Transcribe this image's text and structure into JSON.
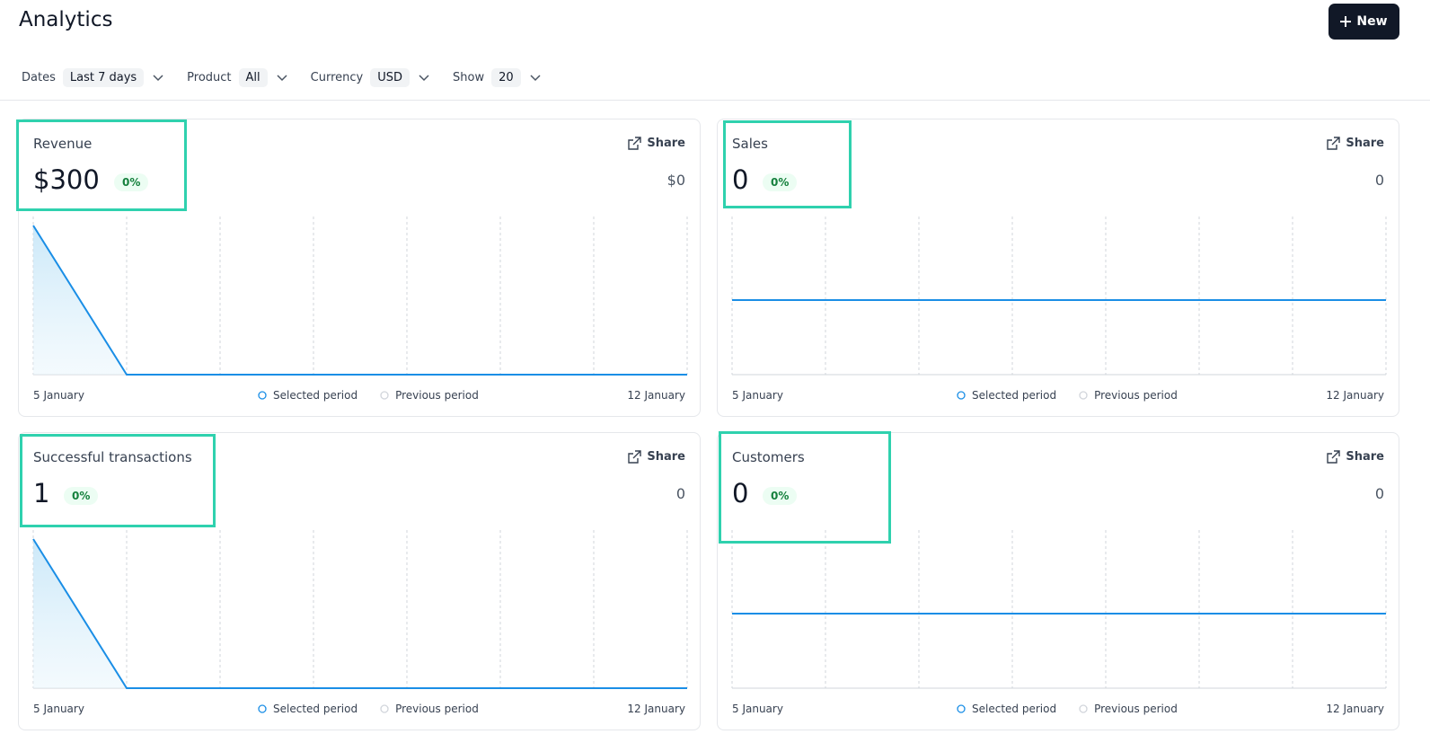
{
  "header": {
    "title": "Analytics",
    "new_button": "New"
  },
  "filters": [
    {
      "label": "Dates",
      "value": "Last 7 days"
    },
    {
      "label": "Product",
      "value": "All"
    },
    {
      "label": "Currency",
      "value": "USD"
    },
    {
      "label": "Show",
      "value": "20"
    }
  ],
  "cards": [
    {
      "title": "Revenue",
      "value": "$300",
      "change": "0%",
      "previous": "$0",
      "share": "Share",
      "x_start": "5 January",
      "x_end": "12 January",
      "legend": [
        "Selected period",
        "Previous period"
      ],
      "values": [
        300,
        0,
        0,
        0,
        0,
        0,
        0,
        0
      ]
    },
    {
      "title": "Sales",
      "value": "0",
      "change": "0%",
      "previous": "0",
      "share": "Share",
      "x_start": "5 January",
      "x_end": "12 January",
      "legend": [
        "Selected period",
        "Previous period"
      ],
      "values": [
        0,
        0,
        0,
        0,
        0,
        0,
        0,
        0
      ]
    },
    {
      "title": "Successful transactions",
      "value": "1",
      "change": "0%",
      "previous": "0",
      "share": "Share",
      "x_start": "5 January",
      "x_end": "12 January",
      "legend": [
        "Selected period",
        "Previous period"
      ],
      "values": [
        1,
        0,
        0,
        0,
        0,
        0,
        0,
        0
      ]
    },
    {
      "title": "Customers",
      "value": "0",
      "change": "0%",
      "previous": "0",
      "share": "Share",
      "x_start": "5 January",
      "x_end": "12 January",
      "legend": [
        "Selected period",
        "Previous period"
      ],
      "values": [
        0,
        0,
        0,
        0,
        0,
        0,
        0,
        0
      ]
    }
  ]
}
